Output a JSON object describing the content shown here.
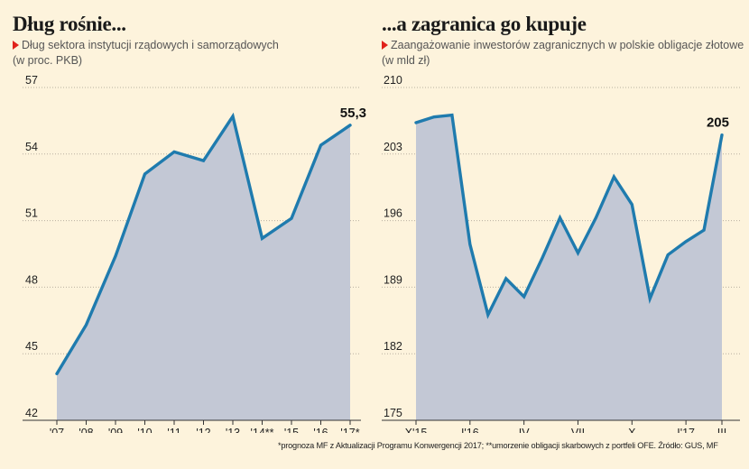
{
  "chart_data": [
    {
      "type": "area",
      "title": "Dług rośnie...",
      "subtitle": "Dług sektora instytucji rządowych i samorządowych",
      "unit": "(w proc. PKB)",
      "categories": [
        "'07",
        "'08",
        "'09",
        "'10",
        "'11",
        "'12",
        "'13",
        "'14**",
        "'15",
        "'16",
        "'17*"
      ],
      "values": [
        44.1,
        46.3,
        49.4,
        53.1,
        54.1,
        53.7,
        55.7,
        50.2,
        51.1,
        54.4,
        55.3
      ],
      "ylim": [
        42,
        57
      ],
      "yticks": [
        "57",
        "54",
        "51",
        "48",
        "45",
        "42"
      ],
      "end_label": "55,3",
      "grid": true,
      "line_color": "#1f7bae",
      "fill_color": "#c3c8d5"
    },
    {
      "type": "area",
      "title": "...a zagranica go kupuje",
      "subtitle": "Zaangażowanie inwestorów zagranicznych w polskie obligacje złotowe",
      "unit": "(w mld zł)",
      "x_tick_labels": [
        "X'15",
        "I'16",
        "IV",
        "VII",
        "X",
        "I'17",
        "III"
      ],
      "values": [
        206.3,
        206.9,
        207.1,
        193.5,
        186.1,
        189.9,
        188.0,
        192.0,
        196.3,
        192.6,
        196.3,
        200.6,
        197.7,
        187.8,
        192.4,
        193.8,
        195.0,
        205.0
      ],
      "ylim": [
        175,
        210
      ],
      "yticks": [
        "210",
        "203",
        "196",
        "189",
        "182",
        "175"
      ],
      "end_label": "205",
      "grid": true,
      "line_color": "#1f7bae",
      "fill_color": "#c3c8d5"
    }
  ],
  "footnote": "*prognoza MF z Aktualizacji Programu Konwergencji 2017; **umorzenie obligacji skarbowych z portfeli OFE. Źródło: GUS, MF"
}
